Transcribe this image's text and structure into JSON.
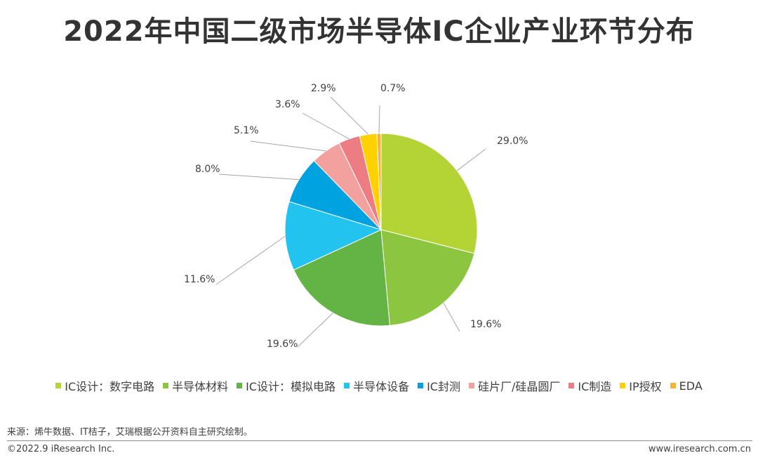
{
  "title": "2022年中国二级市场半导体IC企业产业环节分布",
  "chart_data": {
    "type": "pie",
    "slices": [
      {
        "label": "IC设计：数字电路",
        "value": 29.0,
        "display": "29.0%",
        "color": "#b4d335"
      },
      {
        "label": "半导体材料",
        "value": 19.6,
        "display": "19.6%",
        "color": "#8cc540"
      },
      {
        "label": "IC设计：模拟电路",
        "value": 19.6,
        "display": "19.6%",
        "color": "#64b445"
      },
      {
        "label": "半导体设备",
        "value": 11.6,
        "display": "11.6%",
        "color": "#22c4ef"
      },
      {
        "label": "IC封测",
        "value": 8.0,
        "display": "8.0%",
        "color": "#00a2e0"
      },
      {
        "label": "硅片厂/硅晶圆厂",
        "value": 5.1,
        "display": "5.1%",
        "color": "#f3a19e"
      },
      {
        "label": "IC制造",
        "value": 3.6,
        "display": "3.6%",
        "color": "#ee7c83"
      },
      {
        "label": "IP授权",
        "value": 2.9,
        "display": "2.9%",
        "color": "#ffd100"
      },
      {
        "label": "EDA",
        "value": 0.7,
        "display": "0.7%",
        "color": "#f6b336"
      }
    ],
    "start": "12 o'clock",
    "direction": "clockwise",
    "legend_position": "bottom"
  },
  "footer": {
    "source": "来源：烯牛数据、IT桔子，艾瑞根据公开资料自主研究绘制。",
    "copyright": "©2022.9 iResearch Inc.",
    "website": "www.iresearch.com.cn"
  }
}
